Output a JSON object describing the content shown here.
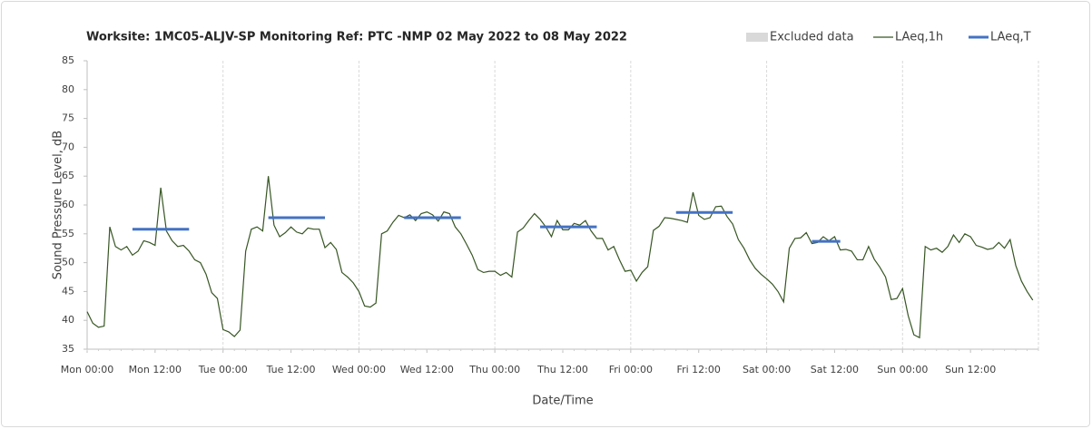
{
  "chart_data": {
    "type": "line",
    "title": "Worksite: 1MC05-ALJV-SP Monitoring Ref: PTC   -NMP 02 May 2022 to 08 May 2022",
    "x_label": "Date/Time",
    "y_label": "Sound Pressure Level, dB",
    "xlim": [
      0,
      168
    ],
    "xticks": [
      {
        "value": 0,
        "label": "Mon 00:00"
      },
      {
        "value": 12,
        "label": "Mon 12:00"
      },
      {
        "value": 24,
        "label": "Tue 00:00"
      },
      {
        "value": 36,
        "label": "Tue 12:00"
      },
      {
        "value": 48,
        "label": "Wed 00:00"
      },
      {
        "value": 60,
        "label": "Wed 12:00"
      },
      {
        "value": 72,
        "label": "Thu 00:00"
      },
      {
        "value": 84,
        "label": "Thu 12:00"
      },
      {
        "value": 96,
        "label": "Fri 00:00"
      },
      {
        "value": 108,
        "label": "Fri 12:00"
      },
      {
        "value": 120,
        "label": "Sat 00:00"
      },
      {
        "value": 132,
        "label": "Sat 12:00"
      },
      {
        "value": 144,
        "label": "Sun 00:00"
      },
      {
        "value": 156,
        "label": "Sun 12:00"
      }
    ],
    "ylim": [
      35,
      85
    ],
    "yticks": [
      35,
      40,
      45,
      50,
      55,
      60,
      65,
      70,
      75,
      80,
      85
    ],
    "x_grid_days": [
      24,
      48,
      72,
      96,
      120,
      144,
      168
    ],
    "series": [
      {
        "name": "Excluded data",
        "color": "#d9d9d9",
        "values": []
      },
      {
        "name": "LAeq,1h",
        "color": "#375623",
        "x": [
          0,
          1,
          2,
          3,
          4,
          5,
          6,
          7,
          8,
          9,
          10,
          11,
          12,
          13,
          14,
          15,
          16,
          17,
          18,
          19,
          20,
          21,
          22,
          23,
          24,
          25,
          26,
          27,
          28,
          29,
          30,
          31,
          32,
          33,
          34,
          35,
          36,
          37,
          38,
          39,
          40,
          41,
          42,
          43,
          44,
          45,
          46,
          47,
          48,
          49,
          50,
          51,
          52,
          53,
          54,
          55,
          56,
          57,
          58,
          59,
          60,
          61,
          62,
          63,
          64,
          65,
          66,
          67,
          68,
          69,
          70,
          71,
          72,
          73,
          74,
          75,
          76,
          77,
          78,
          79,
          80,
          81,
          82,
          83,
          84,
          85,
          86,
          87,
          88,
          89,
          90,
          91,
          92,
          93,
          94,
          95,
          96,
          97,
          98,
          99,
          100,
          101,
          102,
          103,
          104,
          105,
          106,
          107,
          108,
          109,
          110,
          111,
          112,
          113,
          114,
          115,
          116,
          117,
          118,
          119,
          120,
          121,
          122,
          123,
          124,
          125,
          126,
          127,
          128,
          129,
          130,
          131,
          132,
          133,
          134,
          135,
          136,
          137,
          138,
          139,
          140,
          141,
          142,
          143,
          144,
          145,
          146,
          147,
          148,
          149,
          150,
          151,
          152,
          153,
          154,
          155,
          156,
          157,
          158,
          159,
          160,
          161,
          162,
          163,
          164,
          165,
          166,
          167
        ],
        "values": [
          41.5,
          39.5,
          38.8,
          39,
          56.2,
          52.8,
          52.2,
          52.8,
          51.3,
          52,
          53.8,
          53.5,
          53,
          63,
          55.5,
          53.8,
          52.8,
          53,
          52,
          50.5,
          50,
          48,
          44.8,
          43.8,
          38.4,
          38,
          37.2,
          38.3,
          52,
          55.8,
          56.2,
          55.5,
          65,
          56.5,
          54.5,
          55.2,
          56.2,
          55.3,
          55,
          56,
          55.8,
          55.8,
          52.6,
          53.5,
          52.3,
          48.3,
          47.5,
          46.5,
          45,
          42.5,
          42.3,
          43,
          55,
          55.5,
          57,
          58.2,
          57.8,
          58.3,
          57.3,
          58.5,
          58.8,
          58.3,
          57.2,
          58.8,
          58.5,
          56.2,
          55,
          53.2,
          51.3,
          48.8,
          48.3,
          48.5,
          48.5,
          47.8,
          48.3,
          47.5,
          55.3,
          56,
          57.3,
          58.5,
          57.5,
          56.2,
          54.5,
          57.3,
          55.7,
          55.7,
          56.8,
          56.5,
          57.3,
          55.5,
          54.2,
          54.2,
          52.2,
          52.8,
          50.5,
          48.5,
          48.7,
          46.8,
          48.3,
          49.3,
          55.6,
          56.3,
          57.8,
          57.7,
          57.5,
          57.3,
          57,
          62.2,
          58.2,
          57.5,
          57.8,
          59.7,
          59.8,
          58,
          56.7,
          54,
          52.5,
          50.5,
          49,
          48,
          47.2,
          46.3,
          45,
          43.2,
          52.5,
          54.2,
          54.3,
          55.2,
          53.3,
          53.5,
          54.5,
          53.8,
          54.5,
          52.2,
          52.3,
          52,
          50.5,
          50.5,
          52.8,
          50.6,
          49.2,
          47.5,
          43.6,
          43.8,
          45.5,
          40.8,
          37.5,
          37,
          52.8,
          52.2,
          52.5,
          51.8,
          52.8,
          54.8,
          53.5,
          55,
          54.5,
          53,
          52.7,
          52.3,
          52.5,
          53.5,
          52.5,
          54,
          49.5,
          46.8,
          45,
          43.5
        ]
      },
      {
        "name": "LAeq,T",
        "color": "#4472c4",
        "x_start": [
          8,
          32,
          56,
          80,
          104,
          128
        ],
        "x_end": [
          18,
          42,
          66,
          90,
          114,
          133
        ],
        "values": [
          55.8,
          57.8,
          57.8,
          56.2,
          58.7,
          53.7
        ]
      }
    ]
  }
}
